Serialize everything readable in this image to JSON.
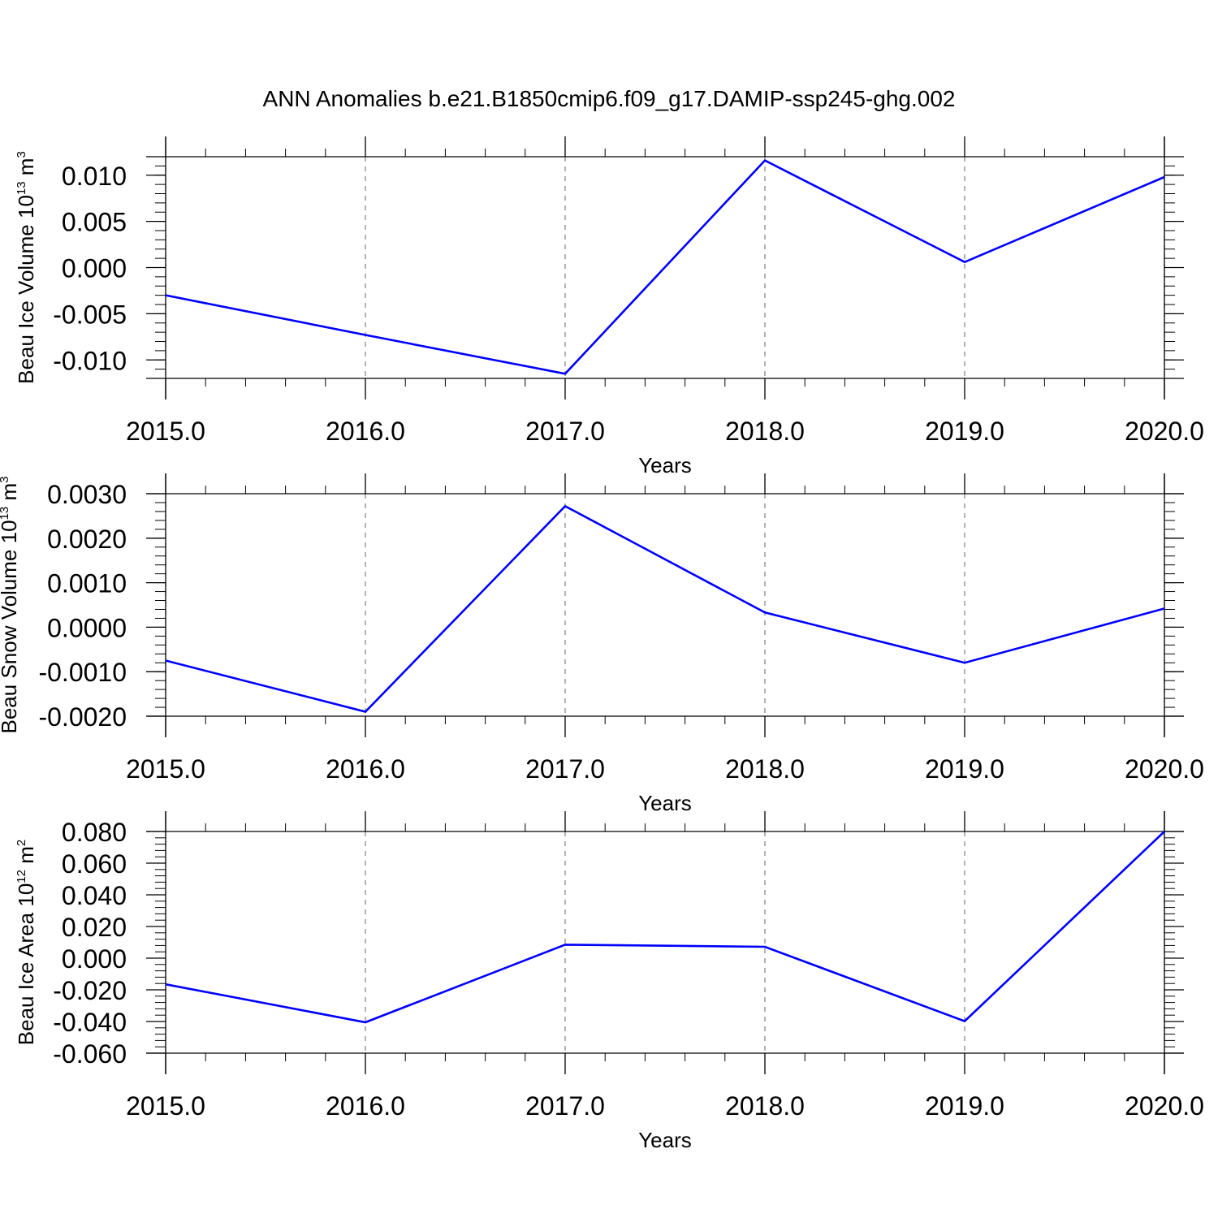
{
  "figure": {
    "title": "ANN Anomalies b.e21.B1850cmip6.f09_g17.DAMIP-ssp245-ghg.002",
    "line_color": "#0000ff",
    "grid_color": "#808080"
  },
  "chart_data": [
    {
      "type": "line",
      "xlabel": "Years",
      "ylabel": {
        "text": "Beau Ice Volume 10",
        "exponent": "13",
        "unit": " m",
        "unit_exponent": "3"
      },
      "x": [
        2015,
        2016,
        2017,
        2018,
        2019,
        2020
      ],
      "x_tick_labels": [
        "2015.0",
        "2016.0",
        "2017.0",
        "2018.0",
        "2019.0",
        "2020.0"
      ],
      "xlim": [
        2015,
        2020
      ],
      "series": [
        {
          "values": [
            -0.003,
            -0.0073,
            -0.0115,
            0.0116,
            0.0006,
            0.0098
          ]
        }
      ],
      "ylim": [
        -0.012,
        0.012
      ],
      "y_ticks": [
        0.01,
        0.005,
        0.0,
        -0.005,
        -0.01
      ],
      "y_tick_labels": [
        "0.010",
        "0.005",
        "0.000",
        "-0.005",
        "-0.010"
      ],
      "y_minor_step": 0.001,
      "grid": "vertical dashed at years"
    },
    {
      "type": "line",
      "xlabel": "Years",
      "ylabel": {
        "text": "Beau Snow Volume 10",
        "exponent": "13",
        "unit": " m",
        "unit_exponent": "3"
      },
      "x": [
        2015,
        2016,
        2017,
        2018,
        2019,
        2020
      ],
      "x_tick_labels": [
        "2015.0",
        "2016.0",
        "2017.0",
        "2018.0",
        "2019.0",
        "2020.0"
      ],
      "xlim": [
        2015,
        2020
      ],
      "series": [
        {
          "values": [
            -0.00075,
            -0.0019,
            0.00272,
            0.00033,
            -0.0008,
            0.00042
          ]
        }
      ],
      "ylim": [
        -0.002,
        0.003
      ],
      "y_ticks": [
        0.003,
        0.002,
        0.001,
        0.0,
        -0.001,
        -0.002
      ],
      "y_tick_labels": [
        "0.0030",
        "0.0020",
        "0.0010",
        "0.0000",
        "-0.0010",
        "-0.0020"
      ],
      "y_minor_step": 0.0002,
      "grid": "vertical dashed at years"
    },
    {
      "type": "line",
      "xlabel": "Years",
      "ylabel": {
        "text": "Beau Ice Area 10",
        "exponent": "12",
        "unit": " m",
        "unit_exponent": "2"
      },
      "x": [
        2015,
        2016,
        2017,
        2018,
        2019,
        2020
      ],
      "x_tick_labels": [
        "2015.0",
        "2016.0",
        "2017.0",
        "2018.0",
        "2019.0",
        "2020.0"
      ],
      "xlim": [
        2015,
        2020
      ],
      "series": [
        {
          "values": [
            -0.0165,
            -0.0405,
            0.0085,
            0.0072,
            -0.0398,
            0.08
          ]
        }
      ],
      "ylim": [
        -0.06,
        0.08
      ],
      "y_ticks": [
        0.08,
        0.06,
        0.04,
        0.02,
        0.0,
        -0.02,
        -0.04,
        -0.06
      ],
      "y_tick_labels": [
        "0.080",
        "0.060",
        "0.040",
        "0.020",
        "0.000",
        "-0.020",
        "-0.040",
        "-0.060"
      ],
      "y_minor_step": 0.004,
      "grid": "vertical dashed at years"
    }
  ]
}
